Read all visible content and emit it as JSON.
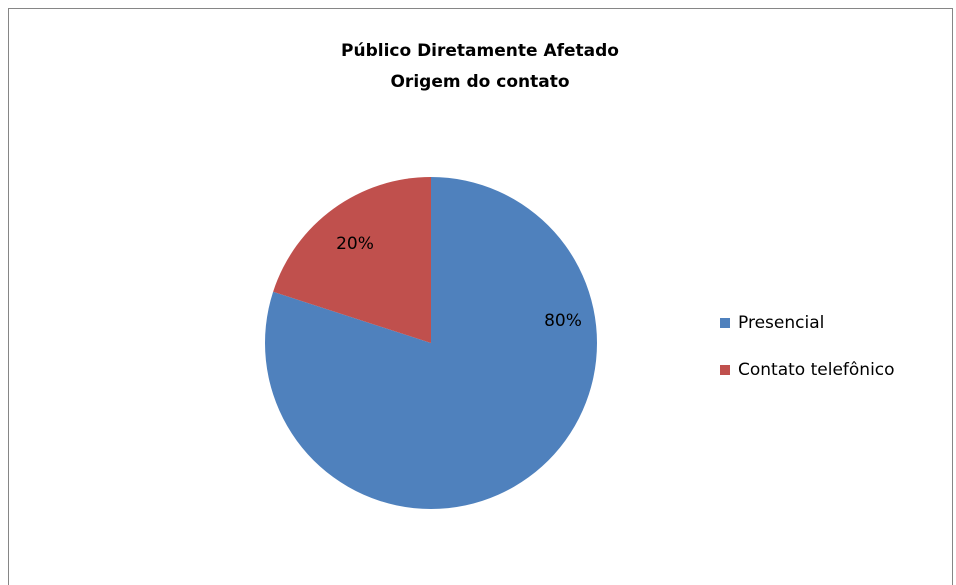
{
  "chart_data": {
    "type": "pie",
    "title": [
      "Público Diretamente Afetado",
      "Origem do contato"
    ],
    "categories": [
      "Presencial",
      "Contato telefônico"
    ],
    "values": [
      80,
      20
    ],
    "value_labels": [
      "80%",
      "20%"
    ],
    "colors": [
      "#4f81bd",
      "#c0504d"
    ],
    "legend": "right"
  }
}
